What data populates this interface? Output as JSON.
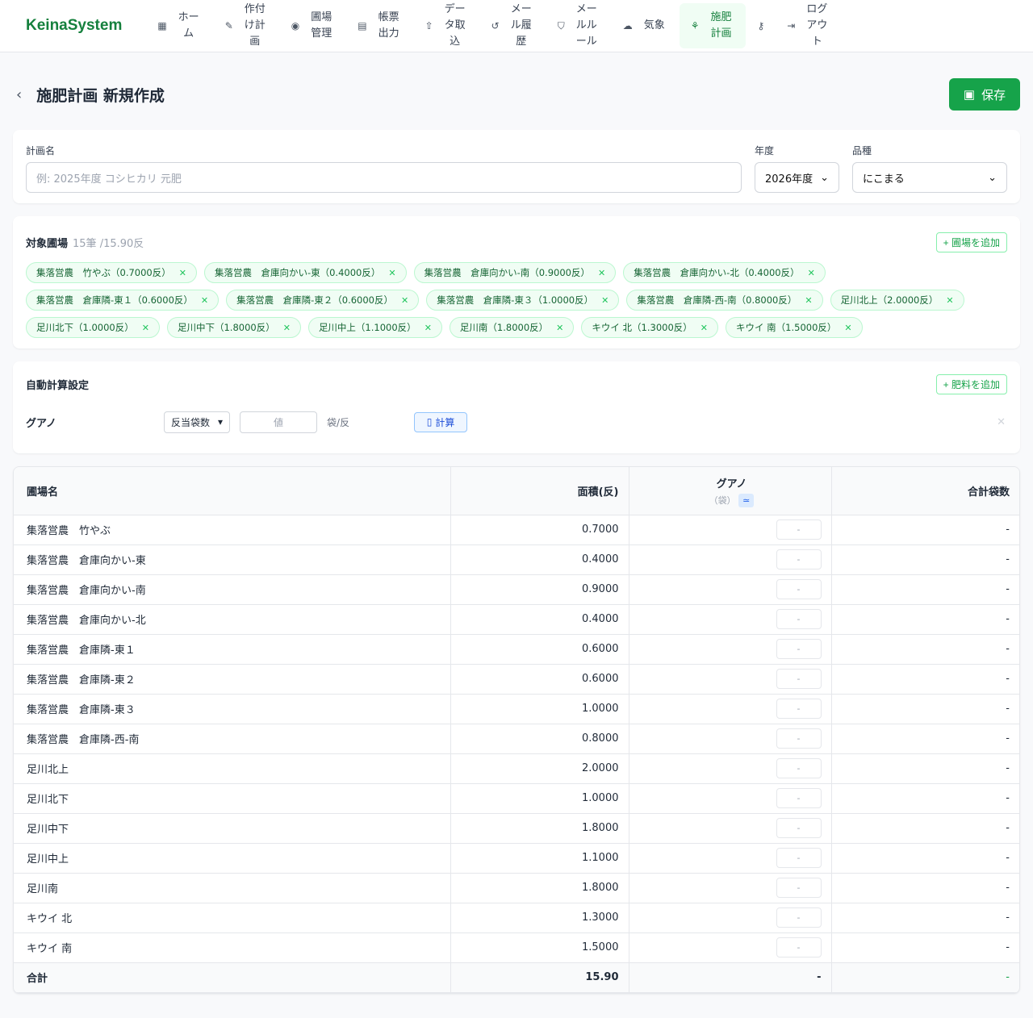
{
  "nav": {
    "logo": "KeinaSystem",
    "items": [
      {
        "label": "ホーム",
        "icon": "grid-icon",
        "g": "▦"
      },
      {
        "label": "作付け計画",
        "icon": "seed-icon",
        "g": "✎"
      },
      {
        "label": "圃場管理",
        "icon": "map-pin-icon",
        "g": "◉"
      },
      {
        "label": "帳票出力",
        "icon": "document-icon",
        "g": "▤"
      },
      {
        "label": "データ取込",
        "icon": "upload-icon",
        "g": "⇧"
      },
      {
        "label": "メール履歴",
        "icon": "history-icon",
        "g": "↺"
      },
      {
        "label": "メールルール",
        "icon": "shield-icon",
        "g": "⛉"
      },
      {
        "label": "気象",
        "icon": "cloud-icon",
        "g": "☁"
      },
      {
        "label": "施肥計画",
        "icon": "sprout-icon",
        "g": "⚘",
        "active": true
      }
    ],
    "key_icon": "key-icon",
    "logout": "ログアウト"
  },
  "header": {
    "title": "施肥計画 新規作成",
    "save": "保存"
  },
  "form": {
    "name_label": "計画名",
    "name_placeholder": "例: 2025年度 コシヒカリ 元肥",
    "year_label": "年度",
    "year_value": "2026年度",
    "variety_label": "品種",
    "variety_value": "にこまる"
  },
  "fields": {
    "title": "対象圃場",
    "summary": "15筆 /15.90反",
    "add": "+ 圃場を追加",
    "chips": [
      "集落営農　竹やぶ（0.7000反）",
      "集落営農　倉庫向かい-東（0.4000反）",
      "集落営農　倉庫向かい-南（0.9000反）",
      "集落営農　倉庫向かい-北（0.4000反）",
      "集落営農　倉庫隣-東１（0.6000反）",
      "集落営農　倉庫隣-東２（0.6000反）",
      "集落営農　倉庫隣-東３（1.0000反）",
      "集落営農　倉庫隣-西-南（0.8000反）",
      "足川北上（2.0000反）",
      "足川北下（1.0000反）",
      "足川中下（1.8000反）",
      "足川中上（1.1000反）",
      "足川南（1.8000反）",
      "キウイ 北（1.3000反）",
      "キウイ 南（1.5000反）"
    ]
  },
  "auto": {
    "title": "自動計算設定",
    "add": "+ 肥料を追加",
    "fertilizer": "グアノ",
    "mode": "反当袋数",
    "value_placeholder": "値",
    "unit": "袋/反",
    "calc": "計算"
  },
  "table": {
    "headers": {
      "name": "圃場名",
      "area": "面積(反)",
      "fert": "グアノ",
      "fert_unit": "（袋）",
      "fert_btn": "≃",
      "total": "合計袋数"
    },
    "rows": [
      {
        "name": "集落営農　竹やぶ",
        "area": "0.7000",
        "bags": "-",
        "total": "-"
      },
      {
        "name": "集落営農　倉庫向かい-東",
        "area": "0.4000",
        "bags": "-",
        "total": "-"
      },
      {
        "name": "集落営農　倉庫向かい-南",
        "area": "0.9000",
        "bags": "-",
        "total": "-"
      },
      {
        "name": "集落営農　倉庫向かい-北",
        "area": "0.4000",
        "bags": "-",
        "total": "-"
      },
      {
        "name": "集落営農　倉庫隣-東１",
        "area": "0.6000",
        "bags": "-",
        "total": "-"
      },
      {
        "name": "集落営農　倉庫隣-東２",
        "area": "0.6000",
        "bags": "-",
        "total": "-"
      },
      {
        "name": "集落営農　倉庫隣-東３",
        "area": "1.0000",
        "bags": "-",
        "total": "-"
      },
      {
        "name": "集落営農　倉庫隣-西-南",
        "area": "0.8000",
        "bags": "-",
        "total": "-"
      },
      {
        "name": "足川北上",
        "area": "2.0000",
        "bags": "-",
        "total": "-"
      },
      {
        "name": "足川北下",
        "area": "1.0000",
        "bags": "-",
        "total": "-"
      },
      {
        "name": "足川中下",
        "area": "1.8000",
        "bags": "-",
        "total": "-"
      },
      {
        "name": "足川中上",
        "area": "1.1000",
        "bags": "-",
        "total": "-"
      },
      {
        "name": "足川南",
        "area": "1.8000",
        "bags": "-",
        "total": "-"
      },
      {
        "name": "キウイ 北",
        "area": "1.3000",
        "bags": "-",
        "total": "-"
      },
      {
        "name": "キウイ 南",
        "area": "1.5000",
        "bags": "-",
        "total": "-"
      }
    ],
    "total": {
      "label": "合計",
      "area": "15.90",
      "bags": "-",
      "total": "-"
    }
  }
}
